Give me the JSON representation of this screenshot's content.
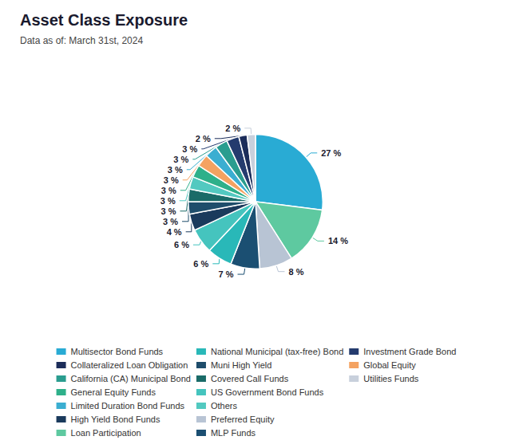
{
  "chart_data": {
    "type": "pie",
    "title": "Asset Class Exposure",
    "subtitle": "Data as of: March 31st, 2024",
    "categories": [
      "Multisector Bond Funds",
      "Loan Participation",
      "Preferred Equity",
      "MLP Funds",
      "National Municipal (tax-free) Bond",
      "US Government Bond Funds",
      "High Yield Bond Funds",
      "Muni High Yield",
      "Covered Call Funds",
      "Others",
      "General Equity Funds",
      "Global Equity",
      "Limited Duration Bond Funds",
      "California (CA) Municipal Bond",
      "Investment Grade Bond",
      "Collateralized Loan Obligation",
      "Utilities Funds"
    ],
    "values": [
      27,
      14,
      8,
      7,
      6,
      6,
      4,
      3,
      3,
      3,
      3,
      3,
      3,
      3,
      3,
      2,
      2
    ],
    "value_labels": [
      "27 %",
      "14 %",
      "8 %",
      "7 %",
      "6 %",
      "6 %",
      "4 %",
      "3 %",
      "3 %",
      "3 %",
      "3 %",
      "3 %",
      "3 %",
      "3 %",
      "3 %",
      "2 %",
      "2 %"
    ],
    "colors": [
      "#29ABD4",
      "#5EC9A0",
      "#B8C4D4",
      "#1B4F72",
      "#29B8B8",
      "#45C4BE",
      "#1A3A5C",
      "#1E4D6B",
      "#1A6B68",
      "#52C9C0",
      "#2EB08A",
      "#F4A261",
      "#3BAED1",
      "#2A9D8F",
      "#243B6E",
      "#1C2D5A",
      "#C8D0DC"
    ],
    "data_labels": true,
    "legend": "bottom",
    "legend_entries": [
      "Multisector Bond Funds",
      "Collateralized Loan Obligation",
      "California (CA) Municipal Bond",
      "General Equity Funds",
      "Limited Duration Bond Funds",
      "High Yield Bond Funds",
      "Loan Participation",
      "National Municipal (tax-free) Bond",
      "Muni High Yield",
      "Covered Call Funds",
      "US Government Bond Funds",
      "Others",
      "Preferred Equity",
      "MLP Funds",
      "Investment Grade Bond",
      "Global Equity",
      "Utilities Funds"
    ]
  }
}
